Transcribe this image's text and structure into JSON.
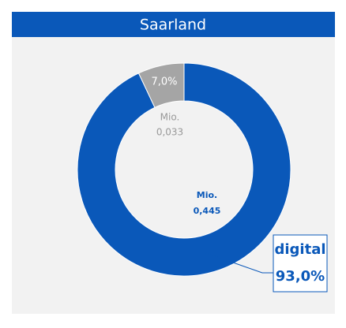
{
  "chart_data": {
    "type": "donut",
    "title": "Saarland",
    "categories": [
      "digital",
      null
    ],
    "values": [
      93.0,
      7.0
    ],
    "value_labels": [
      "93,0%",
      "7,0%"
    ],
    "amount_unit": "Mio.",
    "amounts": [
      0.445,
      0.033
    ],
    "amount_labels": [
      "0,445",
      "0,033"
    ],
    "colors": [
      "#0a58b9",
      "#a5a5a5"
    ]
  }
}
